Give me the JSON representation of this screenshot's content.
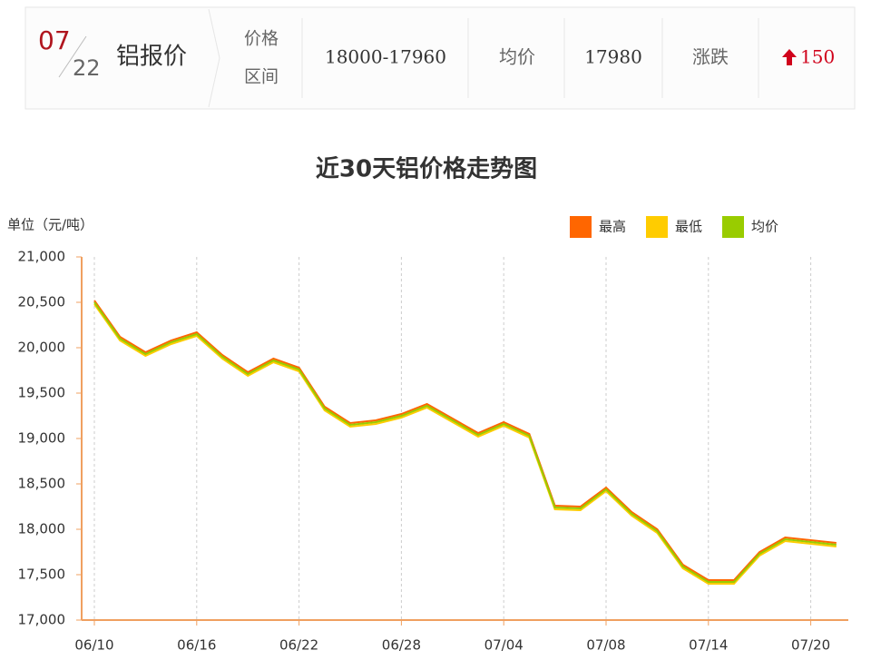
{
  "header": {
    "month": "07",
    "day": "22",
    "name": "铝报价",
    "range_label_1": "价格",
    "range_label_2": "区间",
    "range": "18000-17960",
    "avg_label": "均价",
    "avg": "17980",
    "change_label": "涨跌",
    "change": "150"
  },
  "chart_data": {
    "type": "line",
    "title": "近30天铝价格走势图",
    "y_label": "单位（元/吨）",
    "categories": [
      "06/10",
      null,
      null,
      null,
      "06/16",
      null,
      null,
      null,
      "06/22",
      null,
      null,
      null,
      "06/28",
      null,
      null,
      null,
      "07/04",
      null,
      null,
      null,
      "07/08",
      null,
      null,
      null,
      "07/14",
      null,
      null,
      null,
      "07/20",
      null
    ],
    "series": [
      {
        "name": "最高",
        "color": "#ff6600",
        "values": [
          20520,
          20120,
          19950,
          20080,
          20170,
          19920,
          19730,
          19880,
          19780,
          19350,
          19170,
          19200,
          19270,
          19380,
          19220,
          19060,
          19180,
          19050,
          18260,
          18250,
          18460,
          18190,
          18000,
          17610,
          17440,
          17440,
          17750,
          17910,
          17880,
          17850
        ]
      },
      {
        "name": "最低",
        "color": "#ffcc00",
        "values": [
          20480,
          20080,
          19910,
          20040,
          20130,
          19880,
          19690,
          19840,
          19740,
          19310,
          19130,
          19160,
          19230,
          19340,
          19180,
          19020,
          19140,
          19010,
          18220,
          18210,
          18420,
          18150,
          17960,
          17570,
          17400,
          17400,
          17710,
          17870,
          17840,
          17810
        ]
      },
      {
        "name": "均价",
        "color": "#99cc00",
        "values": [
          20500,
          20100,
          19930,
          20060,
          20150,
          19900,
          19710,
          19860,
          19760,
          19330,
          19150,
          19180,
          19250,
          19360,
          19200,
          19040,
          19160,
          19030,
          18240,
          18230,
          18440,
          18170,
          17980,
          17590,
          17420,
          17420,
          17730,
          17890,
          17860,
          17830
        ]
      }
    ],
    "ylim": [
      17000,
      21000
    ],
    "yticks": [
      {
        "value": 17000,
        "label": "17,000"
      },
      {
        "value": 17500,
        "label": "17,500"
      },
      {
        "value": 18000,
        "label": "18,000"
      },
      {
        "value": 18500,
        "label": "18,500"
      },
      {
        "value": 19000,
        "label": "19,000"
      },
      {
        "value": 19500,
        "label": "19,500"
      },
      {
        "value": 20000,
        "label": "20,000"
      },
      {
        "value": 20500,
        "label": "20,500"
      },
      {
        "value": 21000,
        "label": "21,000"
      }
    ],
    "grid": true,
    "legend": "top-right"
  }
}
